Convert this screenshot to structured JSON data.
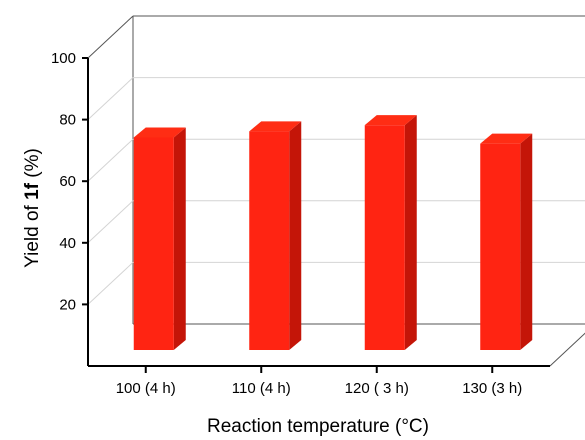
{
  "chart_data": {
    "type": "bar",
    "style": "3d",
    "categories": [
      "100 (4 h)",
      "110 (4 h)",
      "120 ( 3 h)",
      "130 (3 h)"
    ],
    "values": [
      77,
      79,
      81,
      75
    ],
    "ylabel": {
      "prefix": "Yield of ",
      "bold": "1f",
      "suffix": " (%)"
    },
    "xlabel": "Reaction temperature (°C)",
    "ylim": [
      0,
      100
    ],
    "yticks": [
      20,
      40,
      60,
      80,
      100
    ],
    "grid": true,
    "legend": "none",
    "colors": {
      "bar_front": "#ff2412",
      "bar_top": "#ff2d14",
      "bar_side": "#c41508",
      "gridline": "#d4d4d4",
      "wall": "#555555"
    }
  }
}
